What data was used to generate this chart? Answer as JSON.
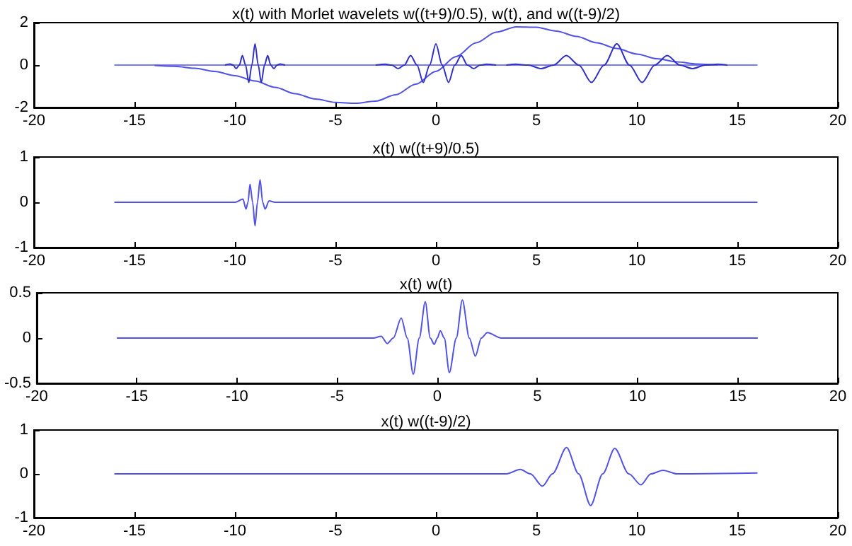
{
  "chart_data": [
    {
      "type": "line",
      "title": "x(t) with Morlet wavelets w((t+9)/0.5), w(t), and w((t-9)/2)",
      "xlim": [
        -20,
        20
      ],
      "xticks": [
        -20,
        -15,
        -10,
        -5,
        0,
        5,
        10,
        15,
        20
      ],
      "ylim": [
        -2,
        2
      ],
      "yticks": [
        -2,
        0,
        2
      ],
      "marker": "none",
      "series": [
        {
          "color": "#7a7af0",
          "x": [
            -16,
            16
          ],
          "values": [
            0,
            0
          ]
        },
        {
          "color": "#5252e6",
          "x": [
            -14,
            -13,
            -12,
            -11,
            -10,
            -9,
            -8,
            -7,
            -6,
            -5,
            -4,
            -3,
            -2,
            -1,
            0,
            1,
            2,
            3,
            4,
            5,
            6,
            7,
            8,
            9,
            10,
            11,
            12,
            13,
            14
          ],
          "values": [
            -0.02,
            -0.06,
            -0.15,
            -0.3,
            -0.5,
            -0.75,
            -1.05,
            -1.35,
            -1.6,
            -1.76,
            -1.8,
            -1.7,
            -1.4,
            -0.9,
            -0.3,
            0.4,
            1.05,
            1.55,
            1.8,
            1.78,
            1.6,
            1.35,
            1.05,
            0.78,
            0.52,
            0.3,
            0.15,
            0.05,
            0
          ]
        },
        {
          "color": "#3030c8",
          "x": [
            -10.5,
            -10.25,
            -10.09,
            -9.94,
            -9.78,
            -9.63,
            -9.47,
            -9.31,
            -9.16,
            -9.0,
            -8.84,
            -8.69,
            -8.53,
            -8.37,
            -8.22,
            -8.06,
            -7.91,
            -7.75,
            -7.5
          ],
          "values": [
            0,
            0.05,
            0,
            -0.17,
            0,
            0.45,
            0,
            -0.82,
            0,
            1.0,
            0,
            -0.82,
            0,
            0.45,
            0,
            -0.17,
            0,
            0.05,
            0
          ]
        },
        {
          "color": "#3030c8",
          "x": [
            -3,
            -2.51,
            -2.2,
            -1.88,
            -1.57,
            -1.26,
            -0.94,
            -0.63,
            -0.31,
            0,
            0.31,
            0.63,
            0.94,
            1.26,
            1.57,
            1.88,
            2.2,
            2.51,
            3
          ],
          "values": [
            0,
            0.04,
            0,
            -0.17,
            0,
            0.45,
            0,
            -0.82,
            0,
            1.0,
            0,
            -0.82,
            0,
            0.45,
            0,
            -0.17,
            0,
            0.04,
            0
          ]
        },
        {
          "color": "#3030c8",
          "x": [
            3.5,
            3.97,
            4.6,
            5.23,
            5.86,
            6.49,
            7.11,
            7.74,
            8.37,
            9,
            9.63,
            10.26,
            10.89,
            11.51,
            12.14,
            12.77,
            13.4,
            14.03,
            14.5
          ],
          "values": [
            0,
            0.04,
            0,
            -0.17,
            0,
            0.45,
            0,
            -0.82,
            0,
            1.0,
            0,
            -0.82,
            0,
            0.45,
            0,
            -0.17,
            0,
            0.04,
            0
          ]
        }
      ]
    },
    {
      "type": "line",
      "title": "x(t) w((t+9)/0.5)",
      "xlim": [
        -20,
        20
      ],
      "xticks": [
        -20,
        -15,
        -10,
        -5,
        0,
        5,
        10,
        15,
        20
      ],
      "ylim": [
        -1,
        1
      ],
      "yticks": [
        -1,
        0,
        1
      ],
      "marker": "none",
      "series": [
        {
          "color": "#5252e6",
          "x": [
            -16,
            -10,
            -9.6,
            -9.45,
            -9.35,
            -9.25,
            -9.12,
            -9.0,
            -8.88,
            -8.75,
            -8.62,
            -8.5,
            -8.3,
            -8,
            16
          ],
          "values": [
            0,
            0,
            0.07,
            -0.15,
            0,
            0.4,
            0,
            -0.52,
            0,
            0.5,
            0,
            -0.15,
            0.03,
            0,
            0
          ]
        }
      ]
    },
    {
      "type": "line",
      "title": "x(t) w(t)",
      "xlim": [
        -20,
        20
      ],
      "xticks": [
        -20,
        -15,
        -10,
        -5,
        0,
        5,
        10,
        15,
        20
      ],
      "ylim": [
        -0.5,
        0.5
      ],
      "yticks": [
        -0.5,
        0,
        0.5
      ],
      "marker": "none",
      "series": [
        {
          "color": "#5252e6",
          "x": [
            -16,
            -3.2,
            -2.8,
            -2.5,
            -2.2,
            -1.8,
            -1.5,
            -1.2,
            -0.9,
            -0.6,
            -0.35,
            -0.15,
            0,
            0.15,
            0.35,
            0.6,
            0.95,
            1.25,
            1.6,
            1.9,
            2.2,
            2.5,
            3.2,
            16
          ],
          "values": [
            0,
            0,
            0.02,
            -0.06,
            0,
            0.22,
            0,
            -0.4,
            0,
            0.4,
            0,
            -0.07,
            0,
            0.08,
            0,
            -0.38,
            0,
            0.42,
            0,
            -0.2,
            0,
            0.06,
            0,
            0
          ]
        }
      ]
    },
    {
      "type": "line",
      "title": "x(t) w((t-9)/2)",
      "xlim": [
        -20,
        20
      ],
      "xticks": [
        -20,
        -15,
        -10,
        -5,
        0,
        5,
        10,
        15,
        20
      ],
      "ylim": [
        -1,
        1
      ],
      "yticks": [
        -1,
        0,
        1
      ],
      "marker": "none",
      "series": [
        {
          "color": "#5252e6",
          "x": [
            -16,
            3.5,
            4.2,
            4.7,
            5.3,
            5.8,
            6.5,
            7.1,
            7.7,
            8.3,
            8.9,
            9.6,
            10.2,
            10.7,
            11.3,
            12,
            16
          ],
          "values": [
            0,
            0,
            0.1,
            0,
            -0.28,
            0,
            0.6,
            0,
            -0.72,
            0,
            0.58,
            0,
            -0.25,
            0,
            0.08,
            0,
            0.02
          ]
        }
      ]
    }
  ]
}
